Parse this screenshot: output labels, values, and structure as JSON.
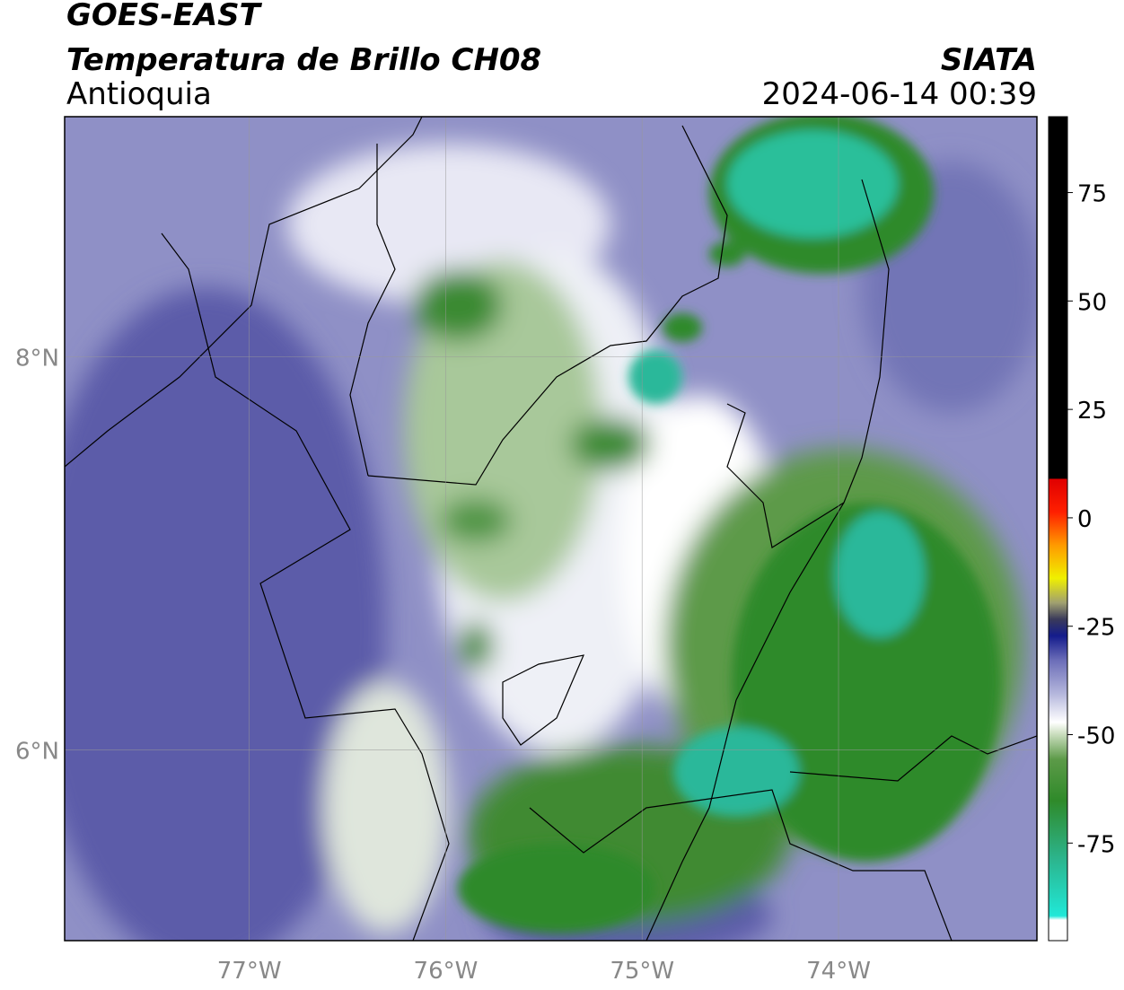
{
  "header": {
    "satellite": "GOES-EAST",
    "product": "Temperatura de Brillo CH08",
    "region": "Antioquia",
    "source": "SIATA",
    "datetime": "2024-06-14 00:39"
  },
  "map": {
    "xlim": [
      -77.94,
      -72.99
    ],
    "ylim": [
      5.03,
      9.22
    ],
    "xticks": [
      {
        "value": -77,
        "label": "77°W"
      },
      {
        "value": -76,
        "label": "76°W"
      },
      {
        "value": -75,
        "label": "75°W"
      },
      {
        "value": -74,
        "label": "74°W"
      }
    ],
    "yticks": [
      {
        "value": 8,
        "label": "8°N"
      },
      {
        "value": 6,
        "label": "6°N"
      }
    ],
    "grid": true
  },
  "colorbar": {
    "lim": [
      -97.5,
      92.5
    ],
    "ticks": [
      75,
      50,
      25,
      0,
      -25,
      -50,
      -75
    ]
  }
}
